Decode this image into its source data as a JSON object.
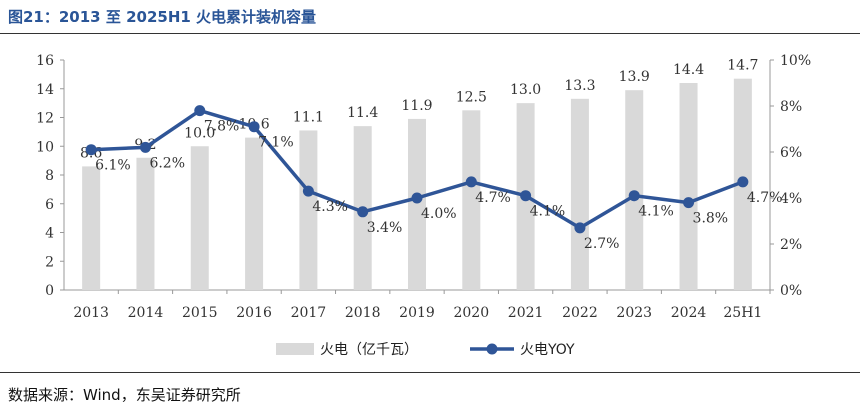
{
  "title": "图21：2013 至 2025H1 火电累计装机容量",
  "source": "数据来源：Wind，东吴证券研究所",
  "colors": {
    "bar": "#d9d9d9",
    "line": "#2f5597",
    "title": "#2a5597"
  },
  "chart_data": {
    "type": "bar+line",
    "categories": [
      "2013",
      "2014",
      "2015",
      "2016",
      "2017",
      "2018",
      "2019",
      "2020",
      "2021",
      "2022",
      "2023",
      "2024",
      "25H1"
    ],
    "series": [
      {
        "name": "火电（亿千瓦）",
        "type": "bar",
        "axis": "left",
        "values": [
          8.6,
          9.2,
          10.0,
          10.6,
          11.1,
          11.4,
          11.9,
          12.5,
          13.0,
          13.3,
          13.9,
          14.4,
          14.7
        ],
        "labels": [
          "8.6",
          "9.2",
          "10.0",
          "10.6",
          "11.1",
          "11.4",
          "11.9",
          "12.5",
          "13.0",
          "13.3",
          "13.9",
          "14.4",
          "14.7"
        ]
      },
      {
        "name": "火电YOY",
        "type": "line",
        "axis": "right",
        "values": [
          6.1,
          6.2,
          7.8,
          7.1,
          4.3,
          3.4,
          4.0,
          4.7,
          4.1,
          2.7,
          4.1,
          3.8,
          4.7
        ],
        "labels": [
          "6.1%",
          "6.2%",
          "7.8%",
          "7.1%",
          "4.3%",
          "3.4%",
          "4.0%",
          "4.7%",
          "4.1%",
          "2.7%",
          "4.1%",
          "3.8%",
          "4.7%"
        ]
      }
    ],
    "y_left": {
      "ylim": [
        0,
        16
      ],
      "ticks": [
        "0",
        "2",
        "4",
        "6",
        "8",
        "10",
        "12",
        "14",
        "16"
      ]
    },
    "y_right": {
      "ylim": [
        0,
        10
      ],
      "ticks": [
        "0%",
        "2%",
        "4%",
        "6%",
        "8%",
        "10%"
      ]
    },
    "legend_position": "bottom",
    "grid": false
  }
}
